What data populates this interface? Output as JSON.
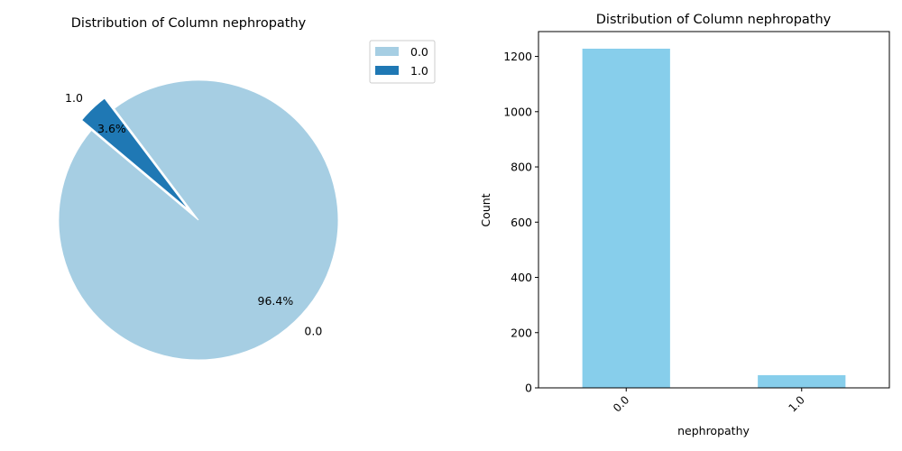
{
  "chart_data": [
    {
      "type": "pie",
      "title": "Distribution of Column nephropathy",
      "labels": [
        "0.0",
        "1.0"
      ],
      "values": [
        96.4,
        3.6
      ],
      "percent_labels": [
        "96.4%",
        "3.6%"
      ],
      "colors": [
        "#a6cee3",
        "#1f78b4"
      ],
      "exploded": [
        "1.0"
      ],
      "legend": {
        "position": "upper-right",
        "entries": [
          "0.0",
          "1.0"
        ]
      }
    },
    {
      "type": "bar",
      "title": "Distribution of Column nephropathy",
      "categories": [
        "0.0",
        "1.0"
      ],
      "values": [
        1228,
        46
      ],
      "xlabel": "nephropathy",
      "ylabel": "Count",
      "ylim": [
        0,
        1290
      ],
      "yticks": [
        0,
        200,
        400,
        600,
        800,
        1000,
        1200
      ],
      "bar_color": "#87ceeb",
      "grid": false
    }
  ]
}
